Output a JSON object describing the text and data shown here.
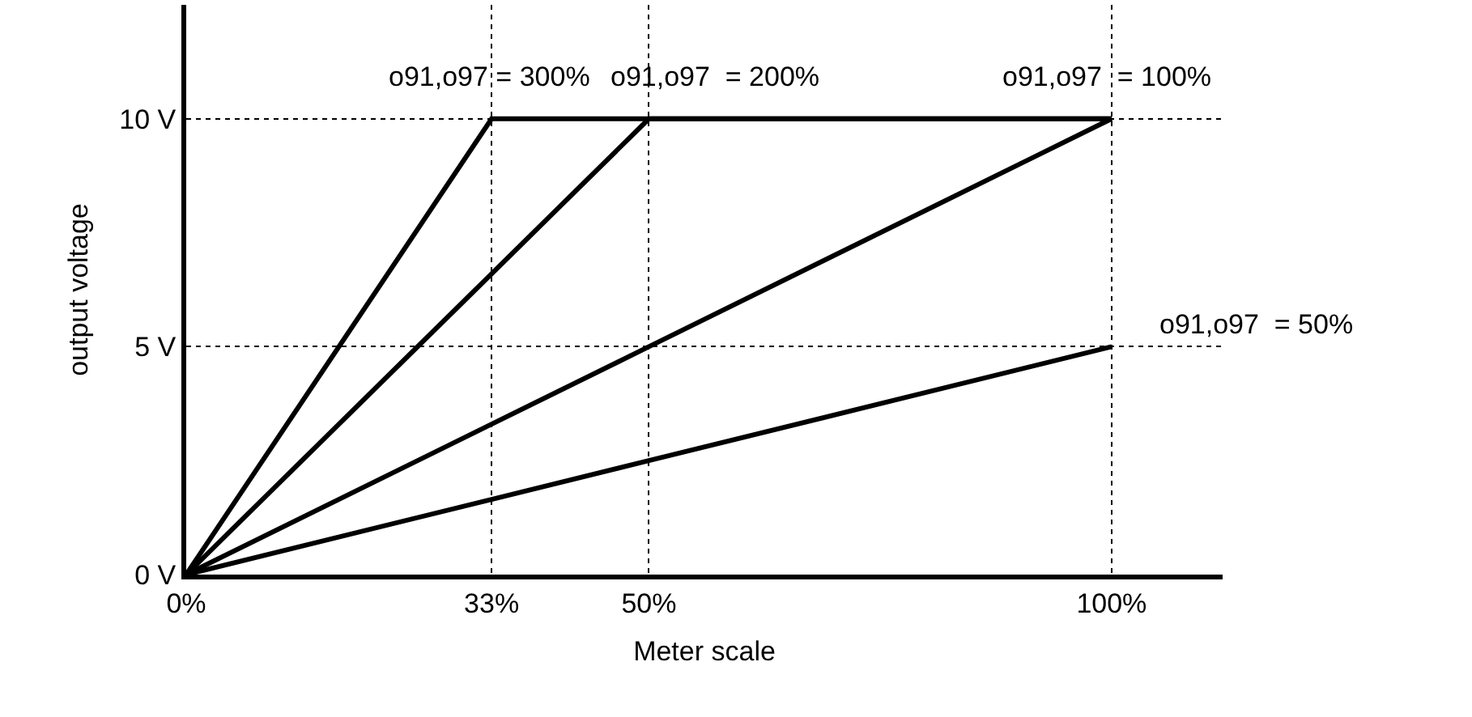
{
  "chart_data": {
    "type": "line",
    "xlabel": "Meter scale",
    "ylabel": "output voltage",
    "x": [
      0,
      33,
      50,
      100
    ],
    "series": [
      {
        "name": "o91,o97 = 300%",
        "color": "#000000",
        "values": [
          0,
          10,
          10,
          10
        ]
      },
      {
        "name": "o91,o97  = 200%",
        "color": "#000000",
        "values": [
          0,
          6.6,
          10,
          10
        ]
      },
      {
        "name": "o91,o97  = 100%",
        "color": "#000000",
        "values": [
          0,
          3.3,
          5,
          10
        ]
      },
      {
        "name": "o91,o97  = 50%",
        "color": "#000000",
        "values": [
          0,
          1.65,
          2.5,
          5
        ]
      }
    ],
    "xlim": [
      0,
      112
    ],
    "ylim": [
      0,
      12.5
    ],
    "xticks": [
      {
        "value": 0,
        "label": "0%"
      },
      {
        "value": 33,
        "label": "33%"
      },
      {
        "value": 50,
        "label": "50%"
      },
      {
        "value": 100,
        "label": "100%"
      }
    ],
    "yticks": [
      {
        "value": 0,
        "label": "0 V"
      },
      {
        "value": 5,
        "label": "5 V"
      },
      {
        "value": 10,
        "label": "10 V"
      }
    ],
    "grid": true,
    "marker": "none",
    "line_style": "solid",
    "legend": false
  }
}
